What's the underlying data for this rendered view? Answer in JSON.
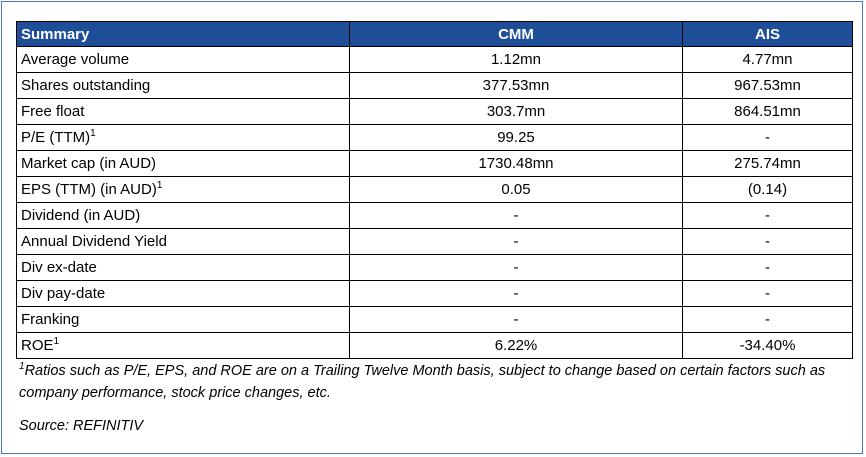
{
  "table": {
    "header": {
      "label": "Summary",
      "col1": "CMM",
      "col2": "AIS"
    },
    "rows": [
      {
        "label": "Average volume",
        "sup": "",
        "cmm": "1.12mn",
        "ais": "4.77mn"
      },
      {
        "label": "Shares outstanding",
        "sup": "",
        "cmm": "377.53mn",
        "ais": "967.53mn"
      },
      {
        "label": "Free float",
        "sup": "",
        "cmm": "303.7mn",
        "ais": "864.51mn"
      },
      {
        "label": "P/E (TTM)",
        "sup": "1",
        "cmm": "99.25",
        "ais": "-"
      },
      {
        "label": "Market cap (in AUD)",
        "sup": "",
        "cmm": "1730.48mn",
        "ais": "275.74mn"
      },
      {
        "label": "EPS (TTM) (in AUD)",
        "sup": "1",
        "cmm": "0.05",
        "ais": "(0.14)"
      },
      {
        "label": "Dividend (in AUD)",
        "sup": "",
        "cmm": "-",
        "ais": "-"
      },
      {
        "label": "Annual Dividend Yield",
        "sup": "",
        "cmm": "-",
        "ais": "-"
      },
      {
        "label": "Div ex-date",
        "sup": "",
        "cmm": "-",
        "ais": "-"
      },
      {
        "label": "Div pay-date",
        "sup": "",
        "cmm": "-",
        "ais": "-"
      },
      {
        "label": "Franking",
        "sup": "",
        "cmm": "-",
        "ais": "-"
      },
      {
        "label": "ROE",
        "sup": "1",
        "cmm": "6.22%",
        "ais": "-34.40%"
      }
    ]
  },
  "footnote": {
    "marker": "1",
    "text": "Ratios such as P/E, EPS, and ROE are on a Trailing Twelve Month basis, subject to change based on certain factors such as company performance, stock price changes, etc."
  },
  "source": "Source: REFINITIV",
  "colors": {
    "header_bg": "#1f4e99",
    "header_text": "#ffffff",
    "frame_border": "#4a76b8"
  }
}
